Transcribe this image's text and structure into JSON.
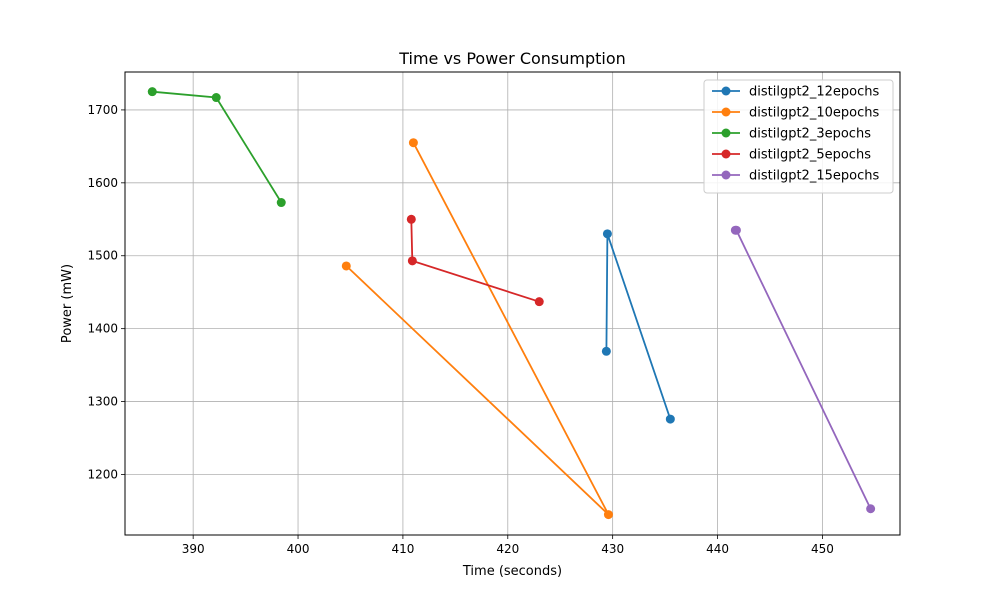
{
  "chart_data": {
    "type": "line",
    "title": "Time vs Power Consumption",
    "xlabel": "Time (seconds)",
    "ylabel": "Power (mW)",
    "xlim": [
      383.5,
      457.4
    ],
    "ylim": [
      1117,
      1752
    ],
    "xticks": [
      390,
      400,
      410,
      420,
      430,
      440,
      450
    ],
    "yticks": [
      1200,
      1300,
      1400,
      1500,
      1600,
      1700
    ],
    "grid": true,
    "legend_position": "top-right",
    "series": [
      {
        "name": "distilgpt2_12epochs",
        "color": "#1f77b4",
        "points": [
          [
            429.4,
            1369
          ],
          [
            429.5,
            1530
          ],
          [
            435.5,
            1276
          ]
        ]
      },
      {
        "name": "distilgpt2_10epochs",
        "color": "#ff7f0e",
        "points": [
          [
            404.6,
            1486
          ],
          [
            429.6,
            1145
          ],
          [
            411.0,
            1655
          ]
        ]
      },
      {
        "name": "distilgpt2_3epochs",
        "color": "#2ca02c",
        "points": [
          [
            386.1,
            1725
          ],
          [
            392.2,
            1717
          ],
          [
            398.4,
            1573
          ]
        ]
      },
      {
        "name": "distilgpt2_5epochs",
        "color": "#d62728",
        "points": [
          [
            410.8,
            1550
          ],
          [
            410.9,
            1493
          ],
          [
            423.0,
            1437
          ]
        ]
      },
      {
        "name": "distilgpt2_15epochs",
        "color": "#9467bd",
        "points": [
          [
            441.7,
            1535
          ],
          [
            441.8,
            1535
          ],
          [
            454.6,
            1153
          ]
        ]
      }
    ]
  }
}
